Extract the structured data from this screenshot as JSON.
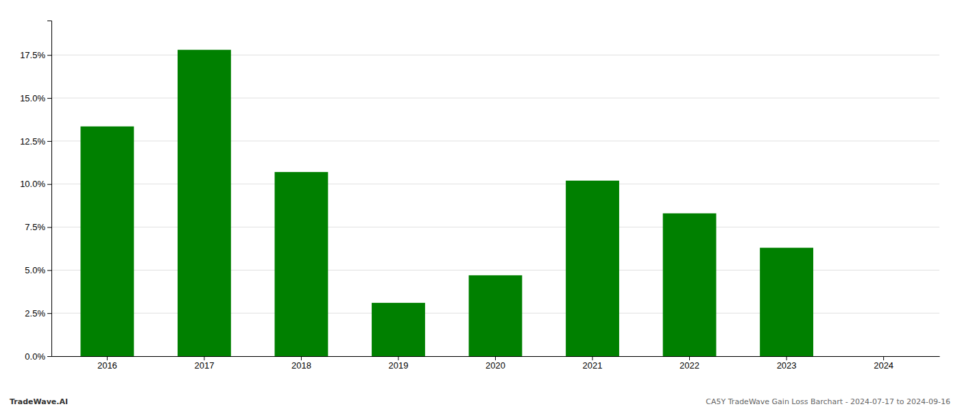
{
  "chart_data": {
    "type": "bar",
    "categories": [
      "2016",
      "2017",
      "2018",
      "2019",
      "2020",
      "2021",
      "2022",
      "2023",
      "2024"
    ],
    "values": [
      0.1335,
      0.178,
      0.107,
      0.031,
      0.047,
      0.102,
      0.083,
      0.063,
      0.0
    ],
    "color": "#008000",
    "ylim": [
      0,
      0.195
    ],
    "yticks": [
      {
        "value": 0.0,
        "label": "0.0%"
      },
      {
        "value": 0.025,
        "label": "2.5%"
      },
      {
        "value": 0.05,
        "label": "5.0%"
      },
      {
        "value": 0.075,
        "label": "7.5%"
      },
      {
        "value": 0.1,
        "label": "10.0%"
      },
      {
        "value": 0.125,
        "label": "12.5%"
      },
      {
        "value": 0.15,
        "label": "15.0%"
      },
      {
        "value": 0.175,
        "label": "17.5%"
      }
    ],
    "grid": true,
    "annotations": [
      "TradeWave.AI",
      "CA5Y TradeWave Gain Loss Barchart - 2024-07-17 to 2024-09-16"
    ]
  }
}
